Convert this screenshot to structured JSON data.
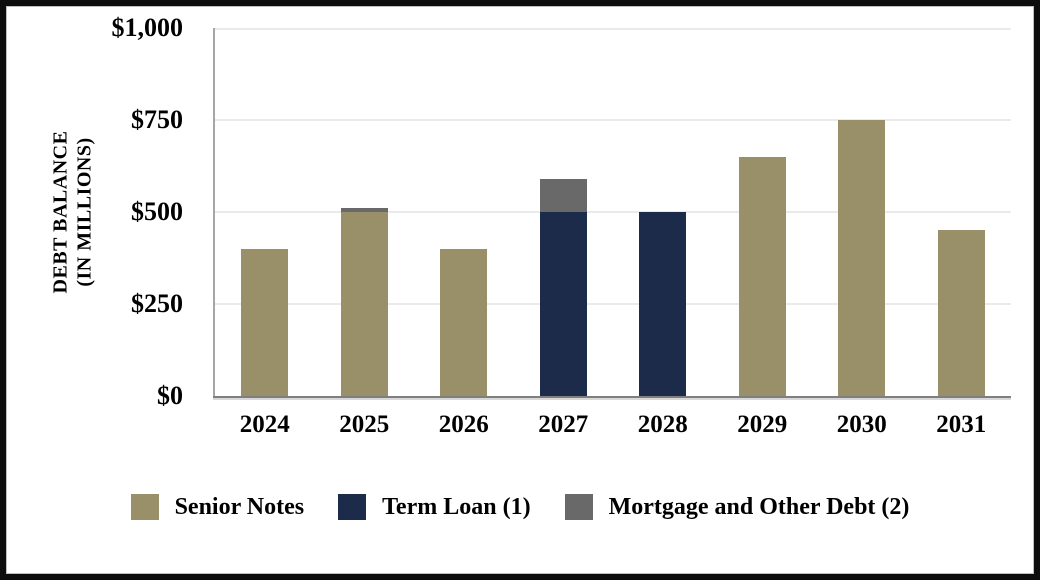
{
  "frame": {
    "background_color": "#ffffff",
    "border_color": "#0d0d0d"
  },
  "chart_data": {
    "type": "bar",
    "stacked": true,
    "title": "",
    "ylabel_line1": "DEBT BALANCE",
    "ylabel_line2": "(IN MILLIONS)",
    "xlabel": "",
    "categories": [
      "2024",
      "2025",
      "2026",
      "2027",
      "2028",
      "2029",
      "2030",
      "2031"
    ],
    "series": [
      {
        "name": "Senior Notes",
        "color": "#998f68",
        "values": [
          400,
          500,
          400,
          0,
          0,
          650,
          750,
          450
        ]
      },
      {
        "name": "Term Loan (1)",
        "color": "#1c2b4a",
        "values": [
          0,
          0,
          0,
          500,
          500,
          0,
          0,
          0
        ]
      },
      {
        "name": "Mortgage and Other Debt (2)",
        "color": "#696969",
        "values": [
          0,
          10,
          0,
          90,
          0,
          0,
          0,
          0
        ]
      }
    ],
    "ylim": [
      0,
      1000
    ],
    "yticks": [
      {
        "value": 0,
        "label": "$0"
      },
      {
        "value": 250,
        "label": "$250"
      },
      {
        "value": 500,
        "label": "$500"
      },
      {
        "value": 750,
        "label": "$750"
      },
      {
        "value": 1000,
        "label": "$1,000"
      }
    ],
    "grid": true,
    "gridline_color": "#eaeaea",
    "axis_color": "#7f7f7f",
    "legend_position": "bottom"
  }
}
